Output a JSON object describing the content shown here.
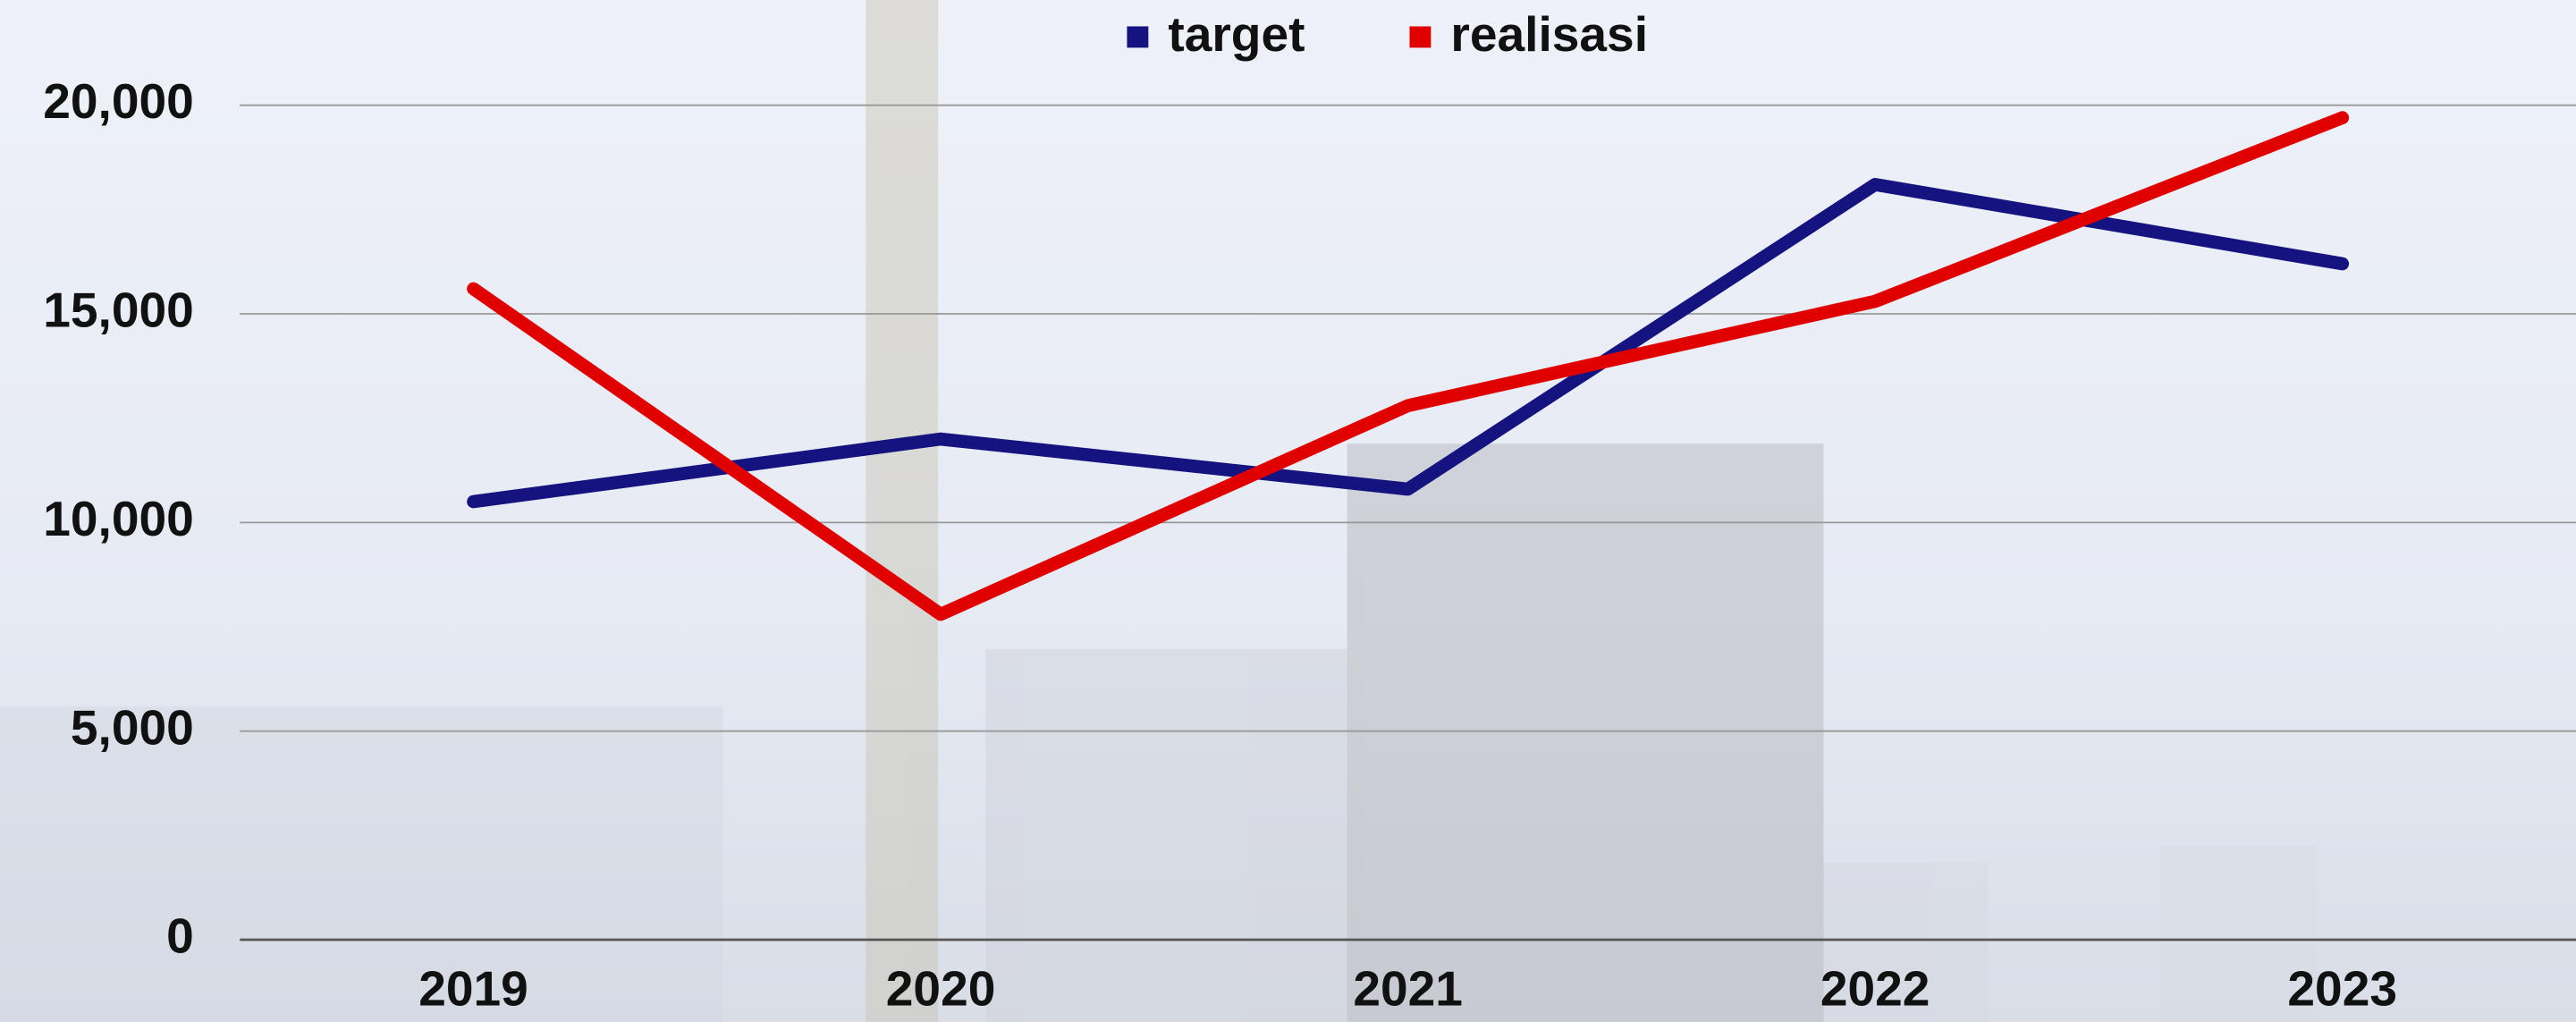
{
  "chart_data": {
    "type": "line",
    "categories": [
      "2019",
      "2020",
      "2021",
      "2022",
      "2023"
    ],
    "series": [
      {
        "name": "target",
        "color": "#15137f",
        "values": [
          10500,
          12000,
          10800,
          18100,
          16200
        ]
      },
      {
        "name": "realisasi",
        "color": "#e00000",
        "values": [
          15600,
          7800,
          12800,
          15300,
          19700
        ]
      }
    ],
    "ylim": [
      0,
      20000
    ],
    "yticks": [
      0,
      {
        "value": 5000,
        "label": "5,000"
      },
      {
        "value": 10000,
        "label": "10,000"
      },
      {
        "value": 15000,
        "label": "15,000"
      },
      {
        "value": 20000,
        "label": "20,000"
      }
    ],
    "grid": true,
    "legend": "top"
  }
}
